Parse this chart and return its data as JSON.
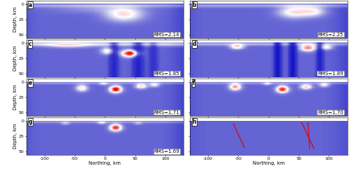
{
  "panels": [
    {
      "label": "a",
      "rms": "RMS=2.14",
      "row": 0,
      "col": 0
    },
    {
      "label": "b",
      "rms": "RMS=2.25",
      "row": 0,
      "col": 1
    },
    {
      "label": "c",
      "rms": "RMS=1.85",
      "row": 1,
      "col": 0
    },
    {
      "label": "d",
      "rms": "RMS=1.89",
      "row": 1,
      "col": 1
    },
    {
      "label": "e",
      "rms": "RMS=1.71",
      "row": 2,
      "col": 0
    },
    {
      "label": "f",
      "rms": "RMS=1.70",
      "row": 2,
      "col": 1
    },
    {
      "label": "g",
      "rms": "RMS=1.69",
      "row": 3,
      "col": 0
    },
    {
      "label": "h",
      "rms": null,
      "row": 3,
      "col": 1
    }
  ],
  "xlim": [
    -130,
    130
  ],
  "ylim": [
    55,
    -5
  ],
  "xticks": [
    -100,
    -50,
    0,
    50,
    100
  ],
  "yticks": [
    0,
    25,
    50
  ],
  "xlabel": "Northing, km",
  "ylabel": "Depth, km"
}
